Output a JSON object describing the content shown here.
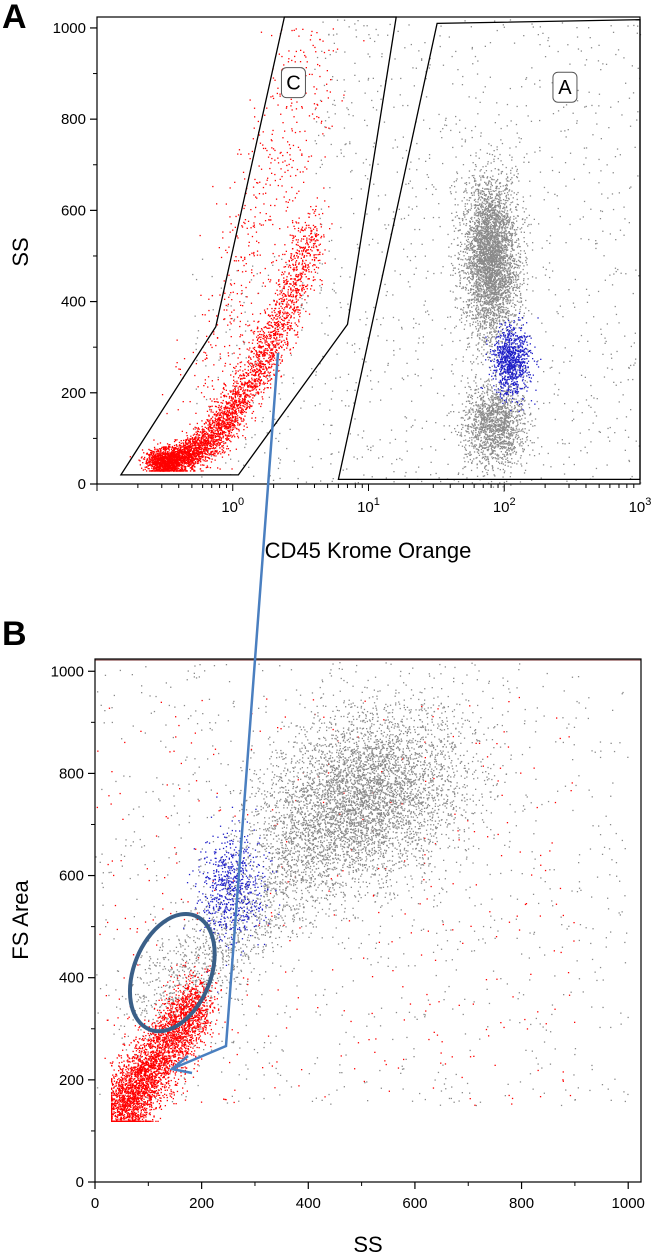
{
  "panel_labels": [
    "A",
    "B"
  ],
  "colors": {
    "cluster_gray": "#8a8a8a",
    "cluster_red": "#ff0000",
    "cluster_blue": "#2020c8",
    "annotation_blue": "#4a7fc0",
    "ellipse_blue": "#3a5f88"
  },
  "chart_data": [
    {
      "panel": "A",
      "type": "scatter",
      "xlabel": "CD45 Krome Orange",
      "ylabel": "SS",
      "xscale": "log",
      "xlim": [
        0.1,
        1000
      ],
      "ylim": [
        0,
        1024
      ],
      "x_tick_labels": [
        {
          "base": "10",
          "exp": "0",
          "value": 1
        },
        {
          "base": "10",
          "exp": "1",
          "value": 10
        },
        {
          "base": "10",
          "exp": "2",
          "value": 100
        },
        {
          "base": "10",
          "exp": "3",
          "value": 1000
        }
      ],
      "y_ticks": [
        0,
        200,
        400,
        600,
        800,
        1000
      ],
      "gates": [
        {
          "label": "C",
          "polygon": [
            [
              0.15,
              20
            ],
            [
              0.75,
              345
            ],
            [
              2.4,
              1024
            ],
            [
              16,
              1024
            ],
            [
              7,
              350
            ],
            [
              1.1,
              20
            ]
          ],
          "label_at": [
            2.8,
            880
          ]
        },
        {
          "label": "A",
          "polygon": [
            [
              6,
              10
            ],
            [
              32,
              1010
            ],
            [
              1000,
              1018
            ],
            [
              1000,
              10
            ]
          ],
          "label_at": [
            280,
            870
          ]
        }
      ],
      "series": [
        {
          "color": "red",
          "population": "gate C",
          "points_approx": 4200,
          "center": {
            "x": 0.65,
            "y": 100
          }
        },
        {
          "color": "gray",
          "population": "gate A",
          "points_approx": 8000,
          "center": {
            "x": 85,
            "y": 480
          }
        },
        {
          "color": "blue",
          "population": "gate A",
          "points_approx": 900,
          "center": {
            "x": 115,
            "y": 270
          }
        }
      ],
      "grid": false
    },
    {
      "panel": "B",
      "type": "scatter",
      "xlabel": "SS",
      "ylabel": "FS Area",
      "xlim": [
        0,
        1024
      ],
      "ylim": [
        0,
        1024
      ],
      "x_ticks": [
        0,
        200,
        400,
        600,
        800,
        1000
      ],
      "y_ticks": [
        0,
        200,
        400,
        600,
        800,
        1000
      ],
      "series": [
        {
          "color": "red",
          "points_approx": 3500,
          "center": {
            "x": 90,
            "y": 230
          }
        },
        {
          "color": "gray",
          "points_approx": 9000,
          "center": {
            "x": 500,
            "y": 750
          }
        },
        {
          "color": "blue",
          "points_approx": 700,
          "center": {
            "x": 250,
            "y": 570
          }
        }
      ],
      "ellipse": {
        "center": {
          "x": 145,
          "y": 410
        },
        "rx": 72,
        "ry": 120,
        "rotation": 22
      },
      "grid": false
    }
  ]
}
